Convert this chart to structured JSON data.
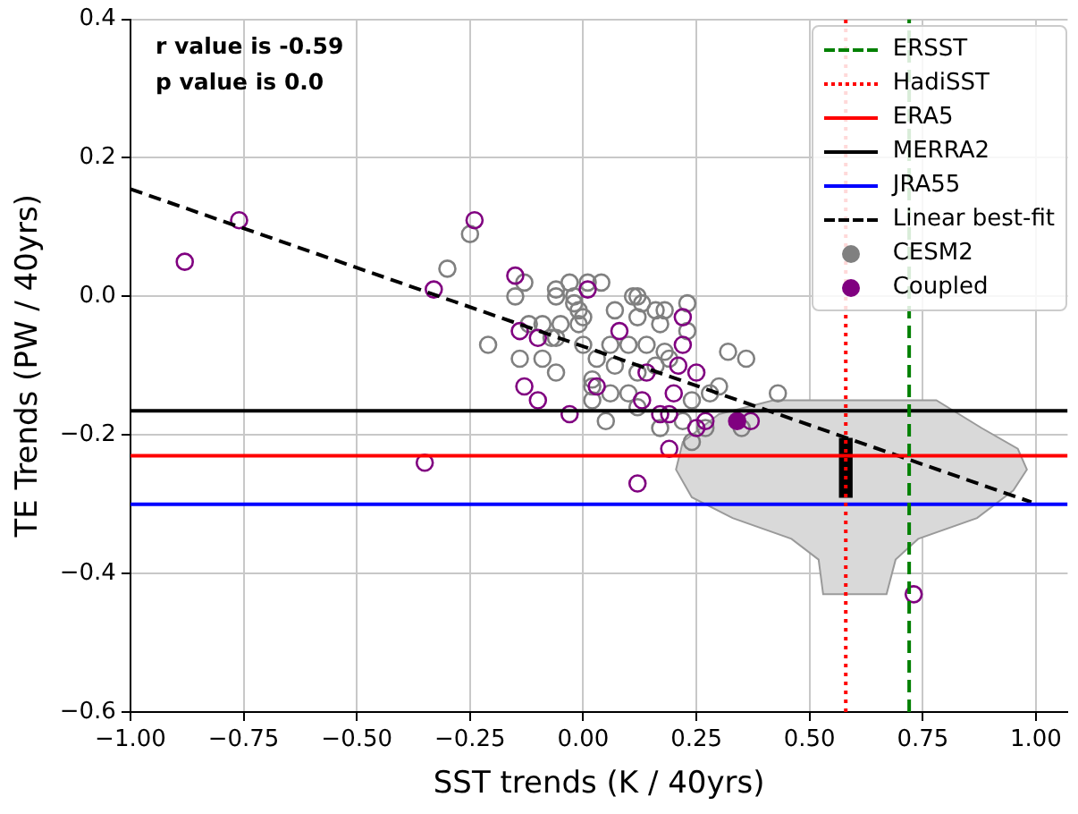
{
  "chart_data": {
    "type": "scatter",
    "xlabel": "SST trends (K / 40yrs)",
    "ylabel": "TE Trends (PW / 40yrs)",
    "annotations": [
      "r value is -0.59",
      "p value is 0.0"
    ],
    "xlim": [
      -1,
      1.07
    ],
    "ylim": [
      -0.6,
      0.4
    ],
    "xticks": [
      {
        "value": -1,
        "label": "−1.00"
      },
      {
        "value": -0.75,
        "label": "−0.75"
      },
      {
        "value": -0.5,
        "label": "−0.50"
      },
      {
        "value": -0.25,
        "label": "−0.25"
      },
      {
        "value": 0,
        "label": "0.00"
      },
      {
        "value": 0.25,
        "label": "0.25"
      },
      {
        "value": 0.5,
        "label": "0.50"
      },
      {
        "value": 0.75,
        "label": "0.75"
      },
      {
        "value": 1,
        "label": "1.00"
      }
    ],
    "yticks": [
      {
        "value": -0.6,
        "label": "−0.6"
      },
      {
        "value": -0.4,
        "label": "−0.4"
      },
      {
        "value": -0.2,
        "label": "−0.2"
      },
      {
        "value": 0,
        "label": "0.0"
      },
      {
        "value": 0.2,
        "label": "0.2"
      },
      {
        "value": 0.4,
        "label": "0.4"
      }
    ],
    "grid": true,
    "legend": "top right",
    "marker": "circle",
    "series": [
      {
        "name": "ERSST",
        "type": "line",
        "marker": "none",
        "line_style": "dashed",
        "color": "#008000",
        "x": [
          0.72,
          0.72
        ],
        "values": [
          -0.6,
          0.4
        ]
      },
      {
        "name": "HadiSST",
        "type": "line",
        "marker": "none",
        "line_style": "dotted",
        "color": "#ff0000",
        "x": [
          0.58,
          0.58
        ],
        "values": [
          -0.6,
          0.4
        ]
      },
      {
        "name": "ERA5",
        "type": "line",
        "marker": "none",
        "line_style": "solid",
        "color": "#ff0000",
        "x": [
          -1,
          1.07
        ],
        "values": [
          -0.23,
          -0.23
        ]
      },
      {
        "name": "MERRA2",
        "type": "line",
        "marker": "none",
        "line_style": "solid",
        "color": "#000000",
        "x": [
          -1,
          1.07
        ],
        "values": [
          -0.165,
          -0.165
        ]
      },
      {
        "name": "JRA55",
        "type": "line",
        "marker": "none",
        "line_style": "solid",
        "color": "#0000ff",
        "x": [
          -1,
          1.07
        ],
        "values": [
          -0.3,
          -0.3
        ]
      },
      {
        "name": "Linear best-fit",
        "type": "line",
        "marker": "none",
        "line_style": "dashed",
        "color": "#000000",
        "x": [
          -1,
          0.99
        ],
        "values": [
          0.155,
          -0.297
        ]
      },
      {
        "name": "CESM2",
        "color": "#808080",
        "x": [
          -0.25,
          -0.3,
          -0.13,
          -0.15,
          -0.06,
          -0.03,
          0.01,
          0.04,
          -0.06,
          -0.02,
          -0.01,
          0.0,
          -0.01,
          -0.05,
          -0.09,
          -0.12,
          -0.06,
          -0.21,
          -0.14,
          -0.09,
          -0.06,
          0.11,
          0.12,
          0.13,
          0.07,
          0.12,
          0.16,
          0.18,
          0.23,
          0.23,
          0.17,
          0.06,
          0.1,
          0.14,
          0.18,
          0.03,
          0.07,
          0.12,
          0.16,
          0.19,
          0.32,
          0.36,
          0.02,
          0.02,
          0.06,
          0.1,
          0.12,
          0.05,
          0.02,
          0.24,
          0.28,
          0.3,
          0.43,
          0.17,
          0.22,
          0.24,
          0.27,
          0.35,
          -0.07,
          0.0,
          -0.02
        ],
        "values": [
          0.09,
          0.04,
          0.02,
          0.0,
          0.01,
          0.02,
          0.02,
          0.02,
          0.0,
          -0.01,
          -0.02,
          -0.03,
          -0.04,
          -0.04,
          -0.04,
          -0.04,
          -0.06,
          -0.07,
          -0.09,
          -0.09,
          -0.11,
          0.0,
          0.0,
          -0.01,
          -0.02,
          -0.03,
          -0.02,
          -0.02,
          -0.01,
          -0.05,
          -0.04,
          -0.07,
          -0.07,
          -0.07,
          -0.08,
          -0.09,
          -0.1,
          -0.11,
          -0.1,
          -0.09,
          -0.08,
          -0.09,
          -0.12,
          -0.13,
          -0.14,
          -0.14,
          -0.16,
          -0.18,
          -0.15,
          -0.15,
          -0.14,
          -0.13,
          -0.14,
          -0.19,
          -0.18,
          -0.21,
          -0.19,
          -0.19,
          -0.06,
          -0.07,
          0.0
        ]
      },
      {
        "name": "Coupled",
        "color": "#800080",
        "x": [
          -0.88,
          -0.76,
          -0.33,
          -0.35,
          -0.24,
          -0.15,
          0.01,
          -0.14,
          -0.1,
          0.08,
          0.22,
          0.22,
          0.21,
          0.25,
          0.14,
          -0.13,
          -0.1,
          0.03,
          0.2,
          0.13,
          -0.03,
          0.17,
          0.19,
          0.27,
          0.25,
          0.37,
          0.19,
          0.12,
          0.73
        ],
        "values": [
          0.05,
          0.11,
          0.01,
          -0.24,
          0.11,
          0.03,
          0.01,
          -0.05,
          -0.06,
          -0.05,
          -0.03,
          -0.07,
          -0.1,
          -0.11,
          -0.11,
          -0.13,
          -0.15,
          -0.13,
          -0.14,
          -0.15,
          -0.17,
          -0.17,
          -0.17,
          -0.18,
          -0.19,
          -0.18,
          -0.22,
          -0.27,
          -0.43
        ]
      },
      {
        "color": "#800080",
        "x": [
          0.34
        ],
        "values": [
          -0.18
        ]
      },
      {
        "type": "area",
        "marker": "none",
        "color": "#d9d9d9",
        "x": [
          0.42,
          0.78,
          0.88,
          0.96,
          0.98,
          0.95,
          0.87,
          0.74,
          0.69,
          0.67,
          0.53,
          0.52,
          0.46,
          0.33,
          0.24,
          0.205,
          0.22,
          0.3,
          0.42
        ],
        "values": [
          -0.15,
          -0.15,
          -0.19,
          -0.22,
          -0.25,
          -0.28,
          -0.32,
          -0.35,
          -0.38,
          -0.43,
          -0.43,
          -0.38,
          -0.35,
          -0.32,
          -0.29,
          -0.25,
          -0.21,
          -0.17,
          -0.15
        ]
      },
      {
        "type": "bar",
        "color": "#000000",
        "x": [
          0.58
        ],
        "base": [
          -0.29
        ],
        "values": [
          0.085
        ]
      }
    ]
  }
}
